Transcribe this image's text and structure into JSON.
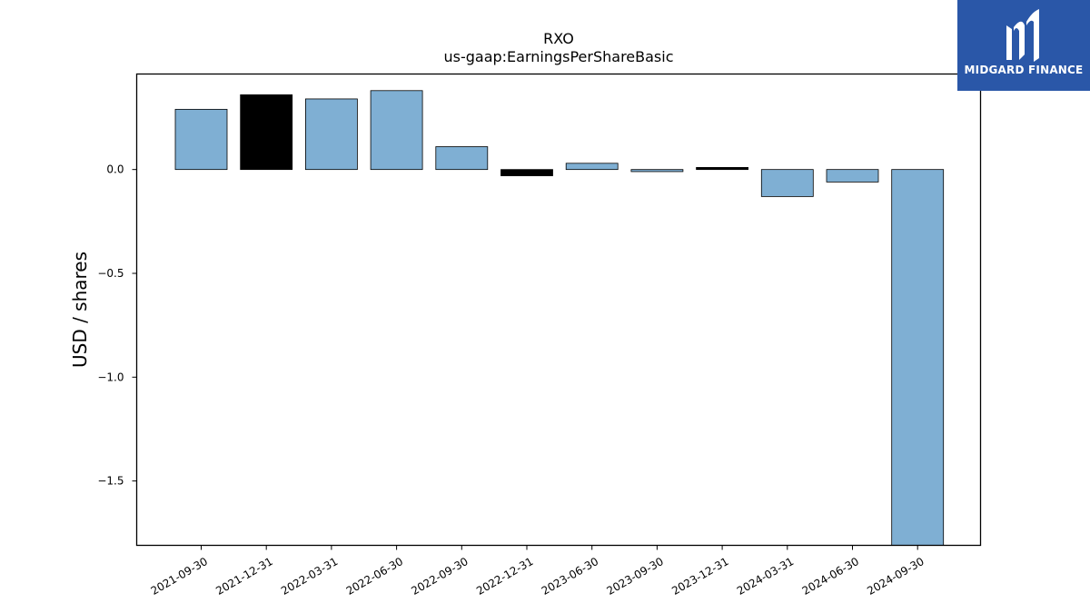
{
  "chart_data": {
    "type": "bar",
    "title": "RXO",
    "subtitle": "us-gaap:EarningsPerShareBasic",
    "xlabel": "",
    "ylabel": "USD / shares",
    "categories": [
      "2021-09-30",
      "2021-12-31",
      "2022-03-31",
      "2022-06-30",
      "2022-09-30",
      "2022-12-31",
      "2023-06-30",
      "2023-09-30",
      "2023-12-31",
      "2024-03-31",
      "2024-06-30",
      "2024-09-30"
    ],
    "values": [
      0.29,
      0.36,
      0.34,
      0.38,
      0.11,
      -0.03,
      0.03,
      -0.01,
      0.01,
      -0.13,
      -0.06,
      -1.81
    ],
    "highlighted": [
      false,
      true,
      false,
      false,
      false,
      true,
      false,
      false,
      true,
      false,
      false,
      false
    ],
    "ylim": [
      -1.81,
      0.46
    ],
    "yticks": [
      0.0,
      -0.5,
      -1.0,
      -1.5
    ],
    "ytick_labels": [
      "0.0",
      "−0.5",
      "−1.0",
      "−1.5"
    ],
    "grid": false,
    "legend": "none",
    "colors": {
      "bar": "#7fafd3",
      "highlight": "#000000",
      "edge": "#000000"
    }
  },
  "logo": {
    "text": "MIDGARD FINANCE",
    "background": "#2a57a8"
  }
}
